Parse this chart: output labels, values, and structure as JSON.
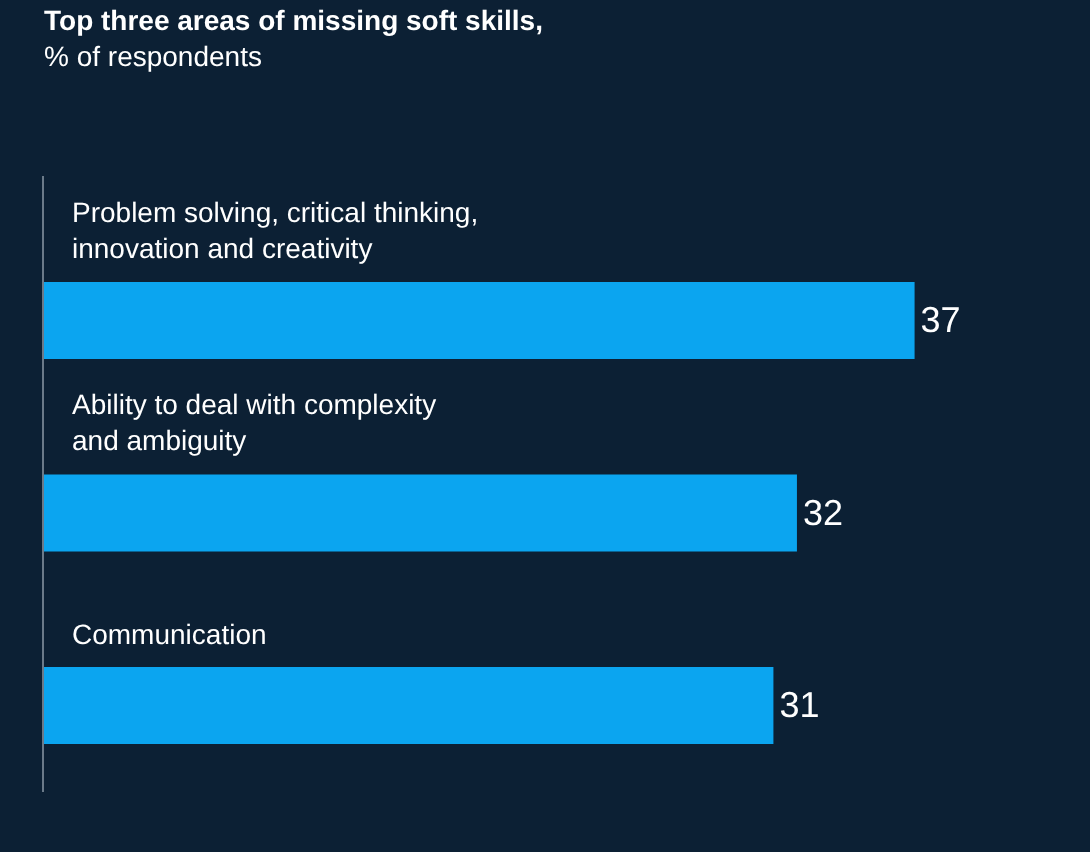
{
  "chart_data": {
    "type": "bar",
    "orientation": "horizontal",
    "title": "Top three areas of missing soft skills,",
    "subtitle": "% of respondents",
    "categories": [
      "Problem solving, critical thinking,\ninnovation and creativity",
      "Ability to deal with complexity\nand ambiguity",
      "Communication"
    ],
    "values": [
      37,
      32,
      31
    ],
    "color": "#0ba5f0",
    "data_labels": true
  }
}
